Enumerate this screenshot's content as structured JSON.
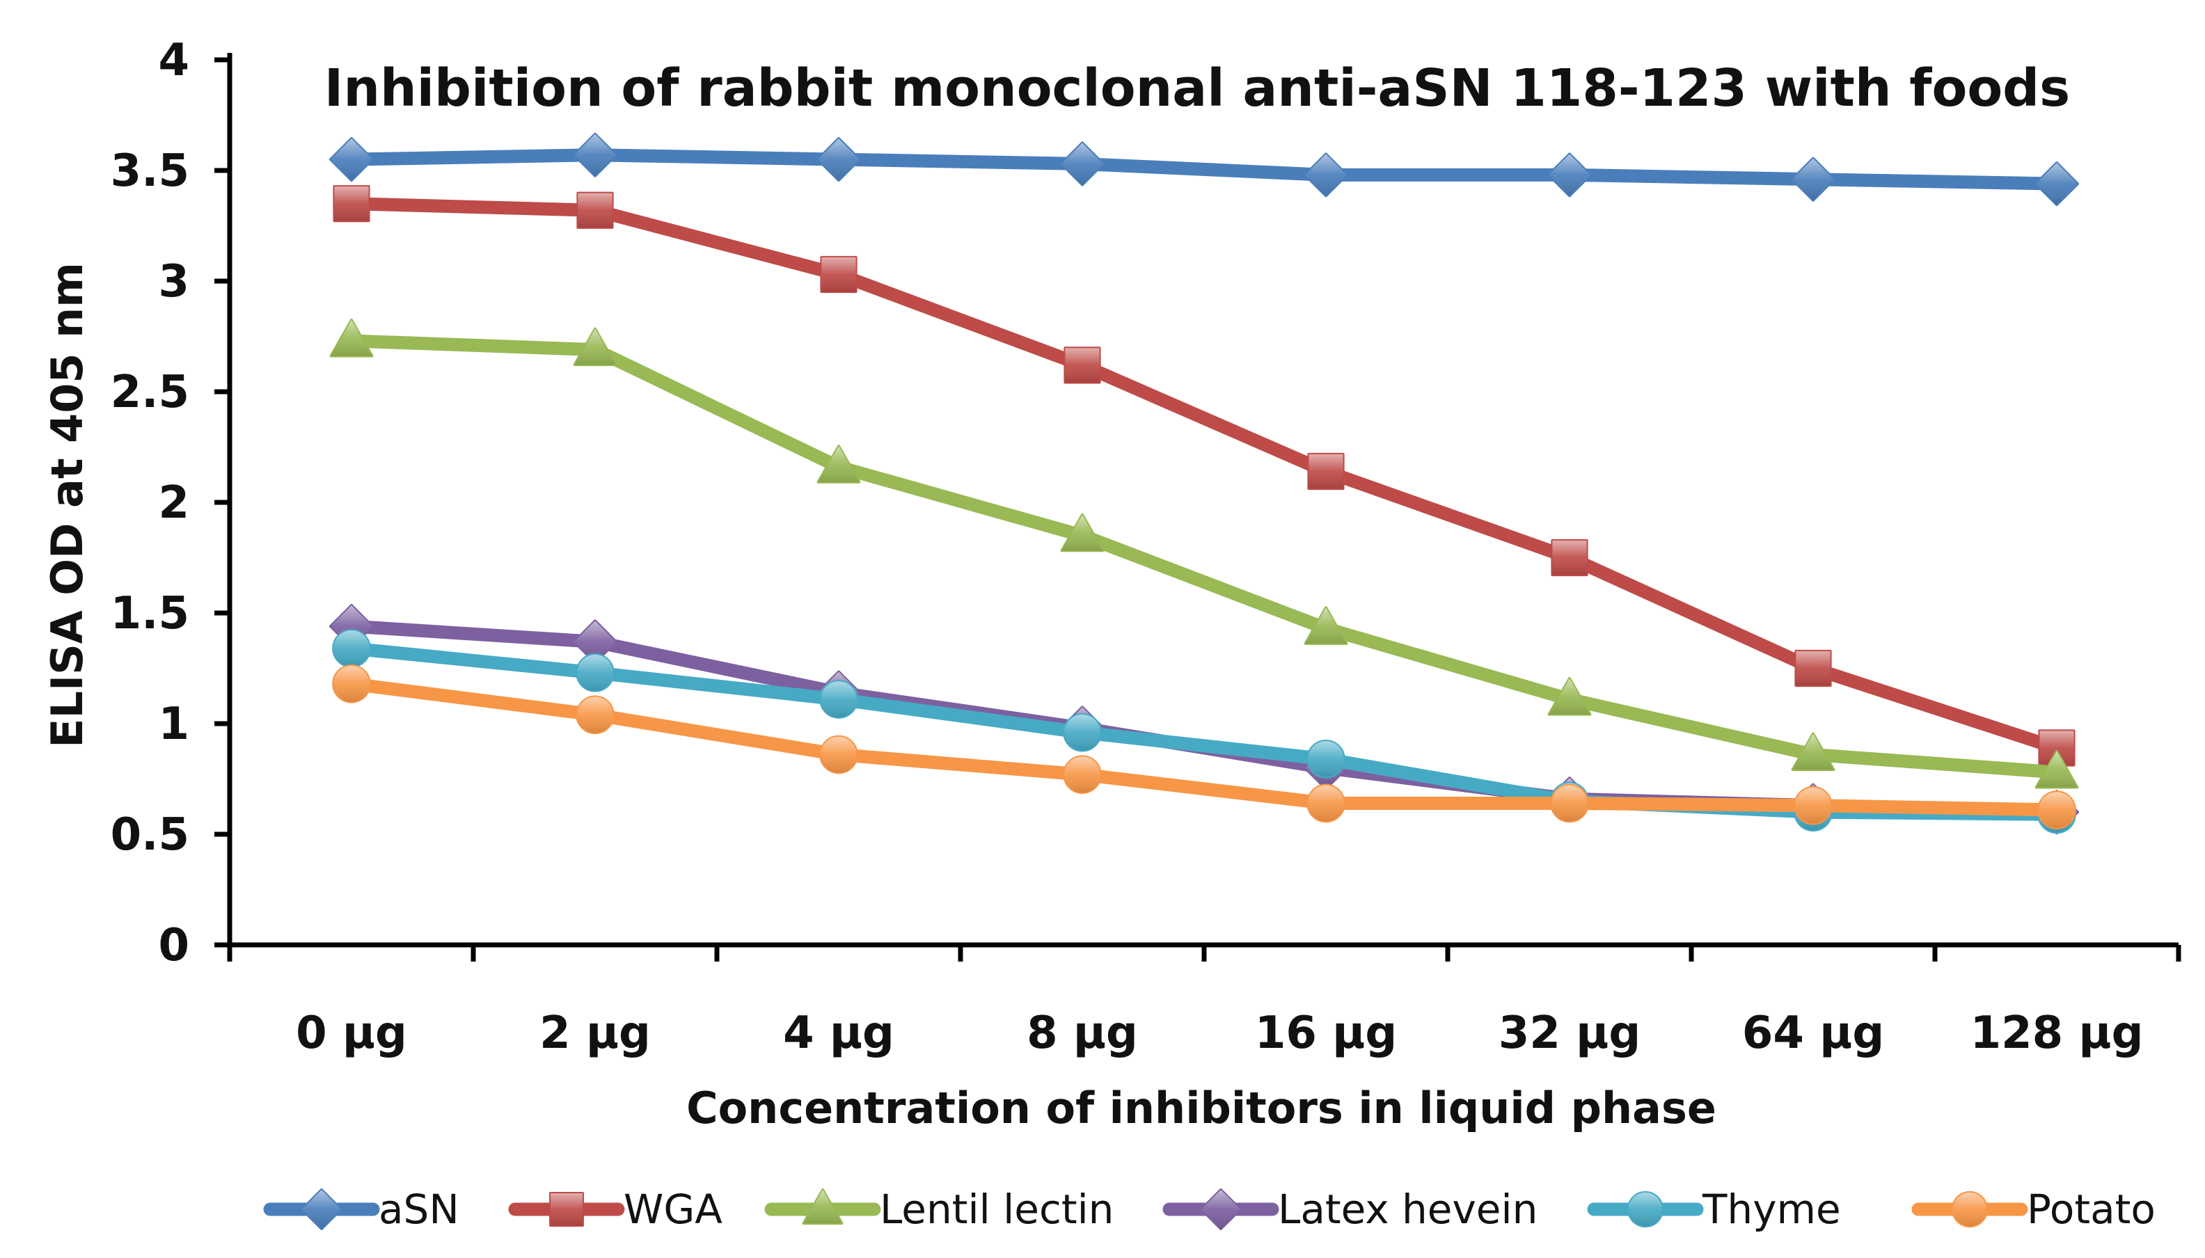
{
  "chart_data": {
    "type": "line",
    "title": "Inhibition of rabbit monoclonal anti-aSN 118-123 with foods",
    "xlabel": "Concentration of inhibitors in liquid phase",
    "ylabel": "ELISA OD at 405 nm",
    "categories": [
      "0 µg",
      "2 µg",
      "4 µg",
      "8 µg",
      "16 µg",
      "32 µg",
      "64 µg",
      "128 µg"
    ],
    "ylim": [
      0,
      4
    ],
    "yticks": [
      0,
      0.5,
      1,
      1.5,
      2,
      2.5,
      3,
      3.5,
      4
    ],
    "ytick_labels": [
      "0",
      "0.5",
      "1",
      "1.5",
      "2",
      "2.5",
      "3",
      "3.5",
      "4"
    ],
    "grid": false,
    "legend_position": "bottom",
    "series": [
      {
        "name": "aSN",
        "color": "#4a7ebb",
        "marker": "diamond",
        "values": [
          3.55,
          3.57,
          3.55,
          3.53,
          3.48,
          3.48,
          3.46,
          3.44
        ]
      },
      {
        "name": "WGA",
        "color": "#be4b48",
        "marker": "square",
        "values": [
          3.35,
          3.32,
          3.03,
          2.62,
          2.14,
          1.75,
          1.25,
          0.89
        ]
      },
      {
        "name": "Lentil lectin",
        "color": "#98b954",
        "marker": "triangle",
        "values": [
          2.73,
          2.69,
          2.16,
          1.85,
          1.43,
          1.11,
          0.86,
          0.78
        ]
      },
      {
        "name": "Latex hevein",
        "color": "#7d60a0",
        "marker": "diamond",
        "values": [
          1.44,
          1.37,
          1.14,
          0.98,
          0.8,
          0.66,
          0.63,
          0.6
        ]
      },
      {
        "name": "Thyme",
        "color": "#46aac5",
        "marker": "circle",
        "values": [
          1.34,
          1.23,
          1.11,
          0.96,
          0.84,
          0.65,
          0.6,
          0.59
        ]
      },
      {
        "name": "Potato",
        "color": "#f79646",
        "marker": "circle",
        "values": [
          1.18,
          1.04,
          0.86,
          0.77,
          0.64,
          0.64,
          0.63,
          0.61
        ]
      }
    ]
  }
}
